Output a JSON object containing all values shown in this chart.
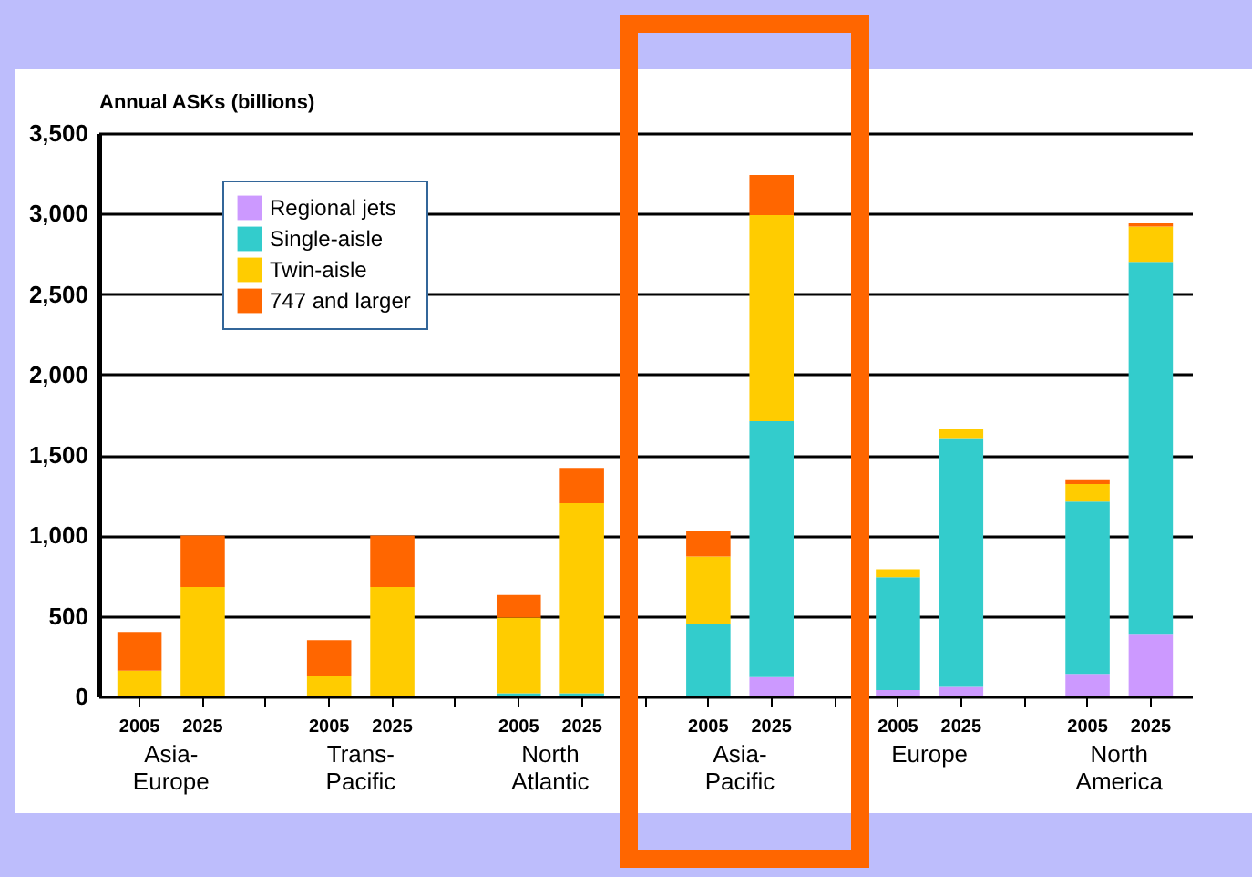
{
  "chart_data": {
    "type": "bar",
    "stacked": true,
    "ylabel": "Annual ASKs (billions)",
    "categories": [
      "2005",
      "2025",
      "2005",
      "2025",
      "2005",
      "2025",
      "2005",
      "2025",
      "2005",
      "2025",
      "2005",
      "2025"
    ],
    "annotations": [
      "Asia-\nEurope",
      "Trans-\nPacific",
      "North\nAtlantic",
      "Asia-\nPacific",
      "Europe",
      "North\nAmerica"
    ],
    "series": [
      {
        "name": "Regional jets",
        "color": "#cc99ff",
        "values": [
          0,
          0,
          0,
          0,
          0,
          0,
          0,
          120,
          40,
          60,
          140,
          390
        ]
      },
      {
        "name": "Single-aisle",
        "color": "#33cccc",
        "values": [
          0,
          0,
          0,
          0,
          20,
          20,
          450,
          1590,
          700,
          1540,
          1070,
          2310
        ]
      },
      {
        "name": "Twin-aisle",
        "color": "#ffcc00",
        "values": [
          160,
          680,
          130,
          680,
          470,
          1180,
          420,
          1280,
          50,
          60,
          110,
          220
        ]
      },
      {
        "name": "747 and larger",
        "color": "#ff6600",
        "values": [
          240,
          320,
          220,
          320,
          140,
          220,
          160,
          250,
          0,
          0,
          30,
          20
        ]
      }
    ],
    "ylim": [
      0,
      3500
    ],
    "yticks": [
      0,
      500,
      {
        "value": 1000,
        "label": "1,000"
      },
      {
        "value": 1500,
        "label": "1,500"
      },
      {
        "value": 2000,
        "label": "2,000"
      },
      {
        "value": 2500,
        "label": "2,500"
      },
      {
        "value": 3000,
        "label": "3,000"
      },
      {
        "value": 3500,
        "label": "3,500"
      }
    ],
    "grid": "y",
    "legend": "top left"
  }
}
